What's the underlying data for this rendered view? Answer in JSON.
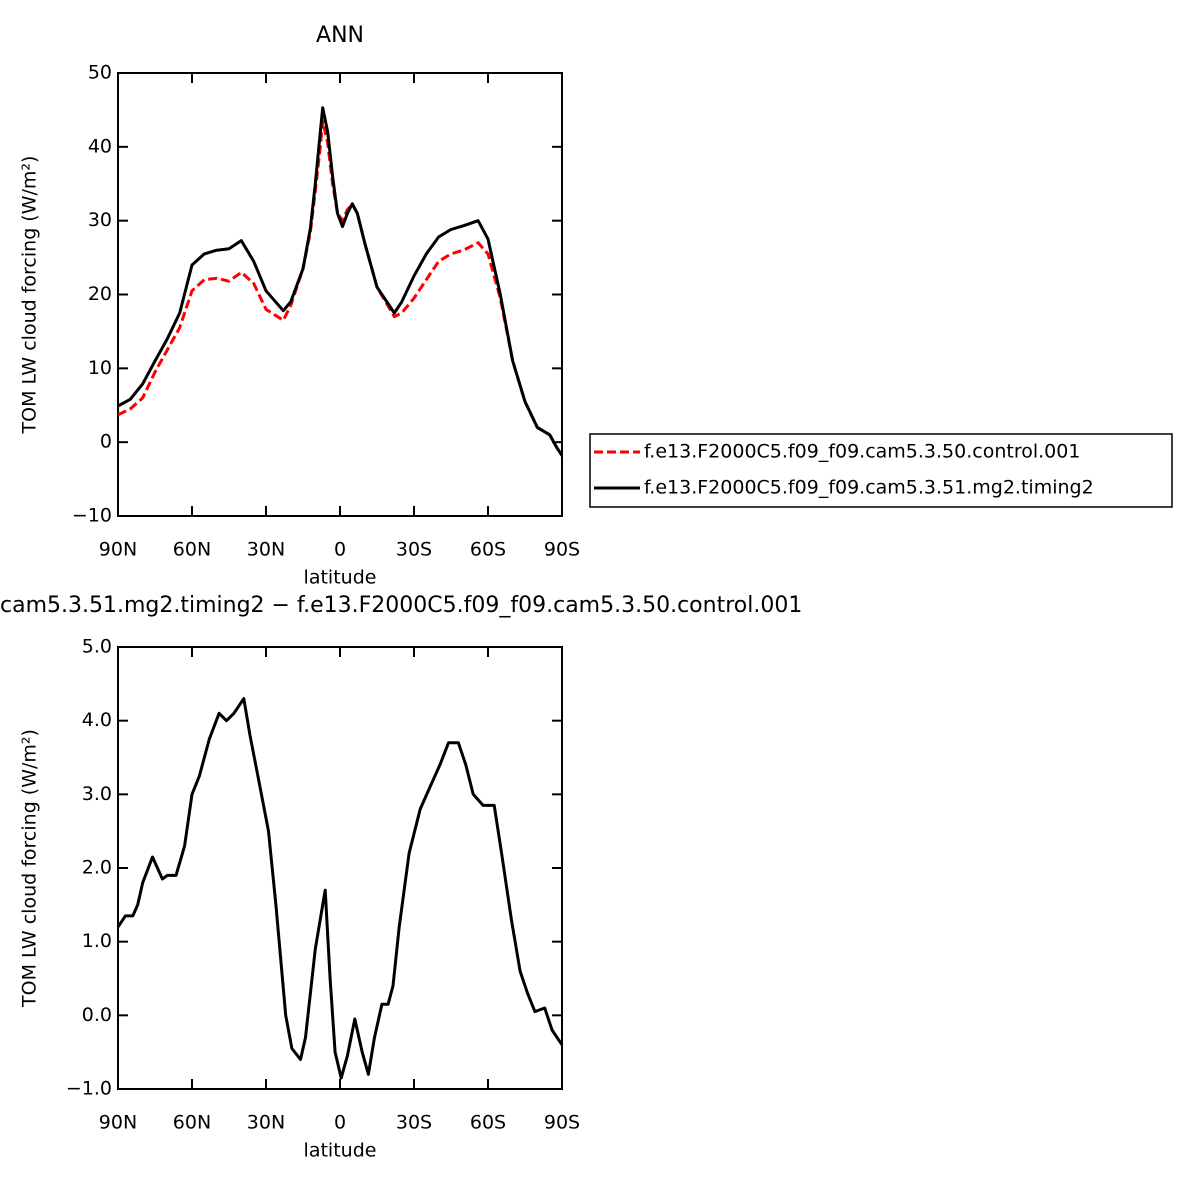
{
  "chart_data": [
    {
      "type": "line",
      "title": "ANN",
      "xlabel": "latitude",
      "ylabel": "TOM LW cloud forcing (W/m²)",
      "x": [
        90,
        85,
        80,
        75,
        70,
        65,
        60,
        55,
        50,
        45,
        40,
        35,
        30,
        23,
        20,
        15,
        12,
        10,
        8,
        7,
        5,
        3,
        1,
        -1,
        -3,
        -5,
        -7,
        -10,
        -15,
        -22,
        -25,
        -30,
        -35,
        -40,
        -45,
        -50,
        -56,
        -60,
        -65,
        -70,
        -75,
        -80,
        -85,
        -88,
        -90
      ],
      "series": [
        {
          "name": "f.e13.F2000C5.f09_f09.cam5.3.50.control.001",
          "color": "#ff0000",
          "line_style": "dashed",
          "values": [
            3.7,
            4.5,
            6,
            9.5,
            12.5,
            15.5,
            20.5,
            22,
            22.2,
            21.8,
            23,
            21.5,
            18,
            16.5,
            18.5,
            23.5,
            28.5,
            34,
            40,
            43.5,
            40.5,
            35,
            31,
            30,
            31.5,
            32.2,
            31,
            27,
            21,
            17,
            17.5,
            19.5,
            22,
            24.5,
            25.5,
            26,
            27,
            25.5,
            19.5,
            11,
            5.5,
            2,
            1,
            -0.8,
            -1.8
          ]
        },
        {
          "name": "f.e13.F2000C5.f09_f09.cam5.3.51.mg2.timing2",
          "color": "#000000",
          "line_style": "solid",
          "values": [
            4.9,
            5.8,
            7.9,
            11,
            14,
            17.5,
            24,
            25.5,
            26,
            26.2,
            27.3,
            24.5,
            20.5,
            17.8,
            19,
            23.5,
            29,
            35,
            42,
            45.3,
            42,
            36,
            31,
            29.2,
            31,
            32.3,
            31,
            27,
            21,
            17.5,
            19,
            22.5,
            25.5,
            27.8,
            28.8,
            29.3,
            30,
            27.5,
            20,
            11,
            5.5,
            2,
            1,
            -0.8,
            -1.8
          ]
        }
      ],
      "xlim": [
        90,
        -90
      ],
      "xticks": [
        {
          "value": 90,
          "label": "90N"
        },
        {
          "value": 60,
          "label": "60N"
        },
        {
          "value": 30,
          "label": "30N"
        },
        0,
        {
          "value": -30,
          "label": "30S"
        },
        {
          "value": -60,
          "label": "60S"
        },
        {
          "value": -90,
          "label": "90S"
        }
      ],
      "ylim": [
        -10,
        50
      ],
      "yticks": [
        {
          "value": -10,
          "label": "−10"
        },
        0,
        10,
        20,
        30,
        40,
        50
      ],
      "legend": "right"
    },
    {
      "type": "line",
      "title": "cam5.3.51.mg2.timing2 − f.e13.F2000C5.f09_f09.cam5.3.50.control.001",
      "xlabel": "latitude",
      "ylabel": "TOM LW cloud forcing (W/m²)",
      "x": [
        90,
        87,
        84,
        82,
        80,
        76,
        72,
        70,
        66.5,
        63,
        60,
        57,
        53,
        49,
        46,
        43,
        39,
        36.5,
        33,
        29,
        26,
        22,
        19.5,
        16,
        14,
        10,
        6,
        4,
        2,
        -0.5,
        -3,
        -6,
        -9,
        -11.5,
        -14,
        -17,
        -19.5,
        -21.5,
        -24,
        -28,
        -32.5,
        -36.5,
        -40.5,
        -44,
        -48,
        -51,
        -54,
        -58,
        -62.5,
        -65.5,
        -69.5,
        -73,
        -76,
        -79,
        -83,
        -86,
        -90
      ],
      "series": [
        {
          "color": "#000000",
          "line_style": "solid",
          "values": [
            1.2,
            1.35,
            1.35,
            1.5,
            1.8,
            2.15,
            1.85,
            1.9,
            1.9,
            2.3,
            3.0,
            3.25,
            3.75,
            4.1,
            4.0,
            4.1,
            4.3,
            3.8,
            3.2,
            2.5,
            1.5,
            0.0,
            -0.45,
            -0.6,
            -0.3,
            0.9,
            1.7,
            0.5,
            -0.5,
            -0.85,
            -0.55,
            -0.05,
            -0.5,
            -0.8,
            -0.3,
            0.15,
            0.15,
            0.4,
            1.2,
            2.2,
            2.8,
            3.1,
            3.4,
            3.7,
            3.7,
            3.4,
            3.0,
            2.85,
            2.85,
            2.2,
            1.3,
            0.6,
            0.3,
            0.05,
            0.1,
            -0.2,
            -0.4
          ]
        }
      ],
      "xlim": [
        90,
        -90
      ],
      "xticks": [
        {
          "value": 90,
          "label": "90N"
        },
        {
          "value": 60,
          "label": "60N"
        },
        {
          "value": 30,
          "label": "30N"
        },
        0,
        {
          "value": -30,
          "label": "30S"
        },
        {
          "value": -60,
          "label": "60S"
        },
        {
          "value": -90,
          "label": "90S"
        }
      ],
      "ylim": [
        -1,
        5
      ],
      "yticks": [
        {
          "value": -1,
          "label": "−1.0"
        },
        {
          "value": 0,
          "label": "0.0"
        },
        {
          "value": 1,
          "label": "1.0"
        },
        {
          "value": 2,
          "label": "2.0"
        },
        {
          "value": 3,
          "label": "3.0"
        },
        {
          "value": 4,
          "label": "4.0"
        },
        {
          "value": 5,
          "label": "5.0"
        }
      ]
    }
  ]
}
